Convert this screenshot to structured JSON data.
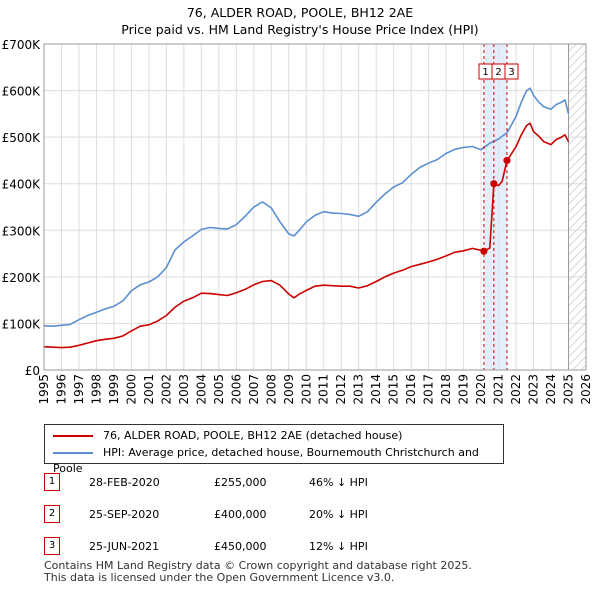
{
  "title": {
    "line1": "76, ALDER ROAD, POOLE, BH12 2AE",
    "line2": "Price paid vs. HM Land Registry's House Price Index (HPI)"
  },
  "chart_data": {
    "type": "line",
    "xlim": [
      1995,
      2026
    ],
    "ylim": [
      0,
      700000
    ],
    "y_ticks": [
      0,
      100000,
      200000,
      300000,
      400000,
      500000,
      600000,
      700000
    ],
    "y_tick_labels": [
      "£0",
      "£100K",
      "£200K",
      "£300K",
      "£400K",
      "£500K",
      "£600K",
      "£700K"
    ],
    "x_ticks": [
      1995,
      1996,
      1997,
      1998,
      1999,
      2000,
      2001,
      2002,
      2003,
      2004,
      2005,
      2006,
      2007,
      2008,
      2009,
      2010,
      2011,
      2012,
      2013,
      2014,
      2015,
      2016,
      2017,
      2018,
      2019,
      2020,
      2021,
      2022,
      2023,
      2024,
      2025,
      2026
    ],
    "grid": true,
    "future_hatch_from": 2025.0,
    "sale_band": [
      2020.16,
      2021.48
    ],
    "series": [
      {
        "name": "76, ALDER ROAD, POOLE, BH12 2AE (detached house)",
        "color": "#cc0000",
        "x": [
          1995.0,
          1995.5,
          1996.0,
          1996.5,
          1997.0,
          1997.5,
          1998.0,
          1998.5,
          1999.0,
          1999.5,
          2000.0,
          2000.5,
          2001.0,
          2001.5,
          2002.0,
          2002.5,
          2003.0,
          2003.5,
          2004.0,
          2004.5,
          2005.0,
          2005.5,
          2006.0,
          2006.5,
          2007.0,
          2007.5,
          2008.0,
          2008.5,
          2009.0,
          2009.3,
          2009.6,
          2010.0,
          2010.5,
          2011.0,
          2011.5,
          2012.0,
          2012.5,
          2013.0,
          2013.5,
          2014.0,
          2014.5,
          2015.0,
          2015.5,
          2016.0,
          2016.5,
          2017.0,
          2017.5,
          2018.0,
          2018.5,
          2019.0,
          2019.5,
          2020.0,
          2020.16,
          2020.5,
          2020.73,
          2021.0,
          2021.2,
          2021.48,
          2021.7,
          2022.0,
          2022.3,
          2022.6,
          2022.8,
          2023.0,
          2023.3,
          2023.6,
          2024.0,
          2024.3,
          2024.6,
          2024.8,
          2025.0
        ],
        "values": [
          50000,
          49000,
          48000,
          49000,
          53000,
          58000,
          63000,
          66000,
          68000,
          73000,
          84000,
          94000,
          97000,
          105000,
          117000,
          135000,
          148000,
          155000,
          165000,
          164000,
          162000,
          160000,
          166000,
          173000,
          183000,
          190000,
          192000,
          182000,
          163000,
          155000,
          163000,
          171000,
          180000,
          182000,
          181000,
          180000,
          180000,
          176000,
          181000,
          190000,
          200000,
          208000,
          214000,
          222000,
          227000,
          232000,
          238000,
          245000,
          253000,
          256000,
          261000,
          257000,
          255000,
          262000,
          400000,
          396000,
          405000,
          450000,
          462000,
          480000,
          505000,
          525000,
          530000,
          512000,
          502000,
          490000,
          484000,
          495000,
          500000,
          505000,
          490000
        ]
      },
      {
        "name": "HPI: Average price, detached house, Bournemouth Christchurch and Poole",
        "color": "#5b8fd0",
        "x": [
          1995.0,
          1995.5,
          1996.0,
          1996.5,
          1997.0,
          1997.5,
          1998.0,
          1998.5,
          1999.0,
          1999.5,
          2000.0,
          2000.5,
          2001.0,
          2001.5,
          2002.0,
          2002.5,
          2003.0,
          2003.5,
          2004.0,
          2004.5,
          2005.0,
          2005.5,
          2006.0,
          2006.5,
          2007.0,
          2007.5,
          2008.0,
          2008.5,
          2009.0,
          2009.3,
          2009.6,
          2010.0,
          2010.5,
          2011.0,
          2011.5,
          2012.0,
          2012.5,
          2013.0,
          2013.5,
          2014.0,
          2014.5,
          2015.0,
          2015.5,
          2016.0,
          2016.5,
          2017.0,
          2017.5,
          2018.0,
          2018.5,
          2019.0,
          2019.5,
          2020.0,
          2020.5,
          2021.0,
          2021.5,
          2022.0,
          2022.3,
          2022.6,
          2022.8,
          2023.0,
          2023.3,
          2023.6,
          2024.0,
          2024.3,
          2024.6,
          2024.8,
          2025.0
        ],
        "values": [
          95000,
          94000,
          96000,
          98000,
          108000,
          117000,
          124000,
          131000,
          137000,
          148000,
          170000,
          183000,
          189000,
          200000,
          220000,
          258000,
          275000,
          288000,
          302000,
          306000,
          304000,
          303000,
          312000,
          330000,
          350000,
          361000,
          348000,
          318000,
          292000,
          288000,
          300000,
          318000,
          332000,
          340000,
          337000,
          336000,
          334000,
          330000,
          340000,
          360000,
          378000,
          393000,
          402000,
          420000,
          435000,
          444000,
          452000,
          465000,
          474000,
          478000,
          480000,
          473000,
          487000,
          496000,
          510000,
          545000,
          575000,
          600000,
          605000,
          590000,
          575000,
          565000,
          560000,
          570000,
          575000,
          580000,
          550000
        ]
      }
    ],
    "sales": [
      {
        "label": "1",
        "x": 2020.16,
        "y": 255000
      },
      {
        "label": "2",
        "x": 2020.73,
        "y": 400000
      },
      {
        "label": "3",
        "x": 2021.48,
        "y": 450000
      }
    ]
  },
  "legend": {
    "red_label": "76, ALDER ROAD, POOLE, BH12 2AE (detached house)",
    "blue_label": "HPI: Average price, detached house, Bournemouth Christchurch and Poole",
    "red_color": "#cc0000",
    "blue_color": "#5b8fd0"
  },
  "sales_table": [
    {
      "num": "1",
      "date": "28-FEB-2020",
      "price": "£255,000",
      "hpi": "46% ↓ HPI"
    },
    {
      "num": "2",
      "date": "25-SEP-2020",
      "price": "£400,000",
      "hpi": "20% ↓ HPI"
    },
    {
      "num": "3",
      "date": "25-JUN-2021",
      "price": "£450,000",
      "hpi": "12% ↓ HPI"
    }
  ],
  "footer": {
    "line1": "Contains HM Land Registry data © Crown copyright and database right 2025.",
    "line2": "This data is licensed under the Open Government Licence v3.0."
  }
}
